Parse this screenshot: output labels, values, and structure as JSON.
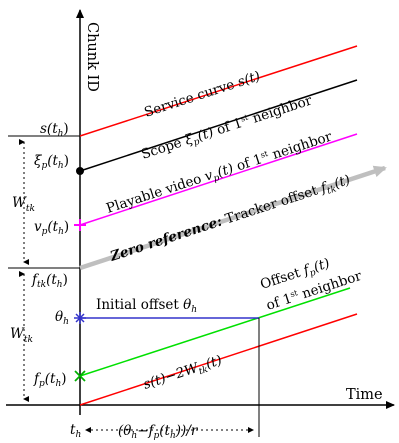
{
  "colors": {
    "service_curve": "#ff0000",
    "scope": "#000000",
    "playable": "#ff00ff",
    "tracker": "#bfbfbf",
    "offset_fp": "#00e000",
    "lower_red": "#ff0000",
    "theta_line": "#3333cc",
    "theta_marker": "#3333cc",
    "fp_marker": "#00b000",
    "vp_marker": "#ff00ff"
  },
  "axes": {
    "y_title": "Chunk ID",
    "x_title": "Time"
  },
  "left_labels": {
    "s_th": "s(t",
    "s_th_sub": "h",
    "xi_p": "ξ",
    "xi_p_arg": "(t",
    "xi_p_sub": "h",
    "v_p": "v",
    "v_p_arg": "(t",
    "v_p_sub": "h",
    "f_tk": "f",
    "f_tk_sub": "tk",
    "f_tk_arg": "(t",
    "theta": "θ",
    "theta_sub": "h",
    "f_p": "f",
    "f_p_arg": "(t",
    "f_p_sub": "h",
    "W_tk_1": "W",
    "W_tk_1_sub": "tk",
    "W_tk_2": "W",
    "W_tk_2_sub": "tk",
    "t_h": "t",
    "t_h_sub": "h",
    "close": ")",
    "p": "p"
  },
  "curve_labels": {
    "service": "Service curve ",
    "service_math": "s(t)",
    "scope": "Scope ",
    "scope_math": "ξ",
    "scope_tail": " of 1",
    "scope_sup": "st",
    "scope_end": " neighbor",
    "playable": "Playable video ",
    "playable_math": "v",
    "playable_tail": " of 1",
    "playable_sup": "st",
    "playable_end": " neighbor",
    "zero_ref_bold": "Zero reference:",
    "zero_ref_rest": " Tracker offset ",
    "zero_ref_math": "f",
    "zero_ref_sub": "tk",
    "offset_line1": "Offset ",
    "offset_math": "f",
    "offset_line2": "of 1",
    "offset_sup": "st",
    "offset_end": " neighbor",
    "initial_offset": "Initial offset ",
    "initial_math": "θ",
    "lower": "s(t)−2W",
    "lower_sub": "tk",
    "lower_end": "(t)",
    "t_arg": "(t)"
  },
  "time_interval": {
    "label_open": "(θ",
    "label_mid": "−f",
    "label_p": "p",
    "label_arg": "(t",
    "label_h": "h",
    "label_close": "))/r"
  }
}
